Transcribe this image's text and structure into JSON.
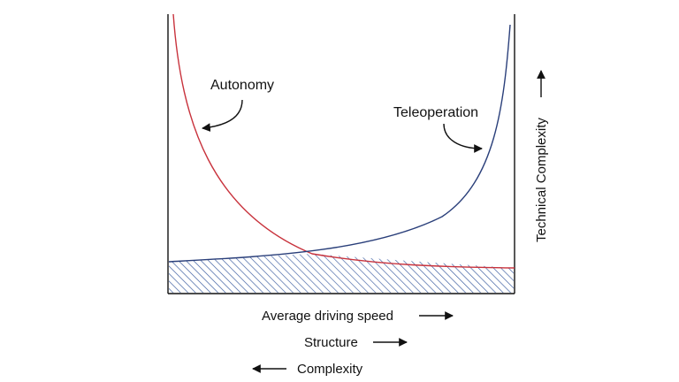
{
  "labels": {
    "autonomy": "Autonomy",
    "teleoperation": "Teleoperation",
    "y_axis": "Technical Complexity",
    "x_axis_1": "Average driving speed",
    "x_axis_2": "Structure",
    "x_axis_3": "Complexity"
  },
  "arrow_directions": {
    "y_axis": "up",
    "x_axis_1": "right",
    "x_axis_2": "right",
    "x_axis_3": "left"
  },
  "colors": {
    "autonomy_curve": "#c8323c",
    "teleoperation_curve": "#2a3f7a",
    "hatch": "#3a5ca0",
    "axes": "#111111"
  }
}
